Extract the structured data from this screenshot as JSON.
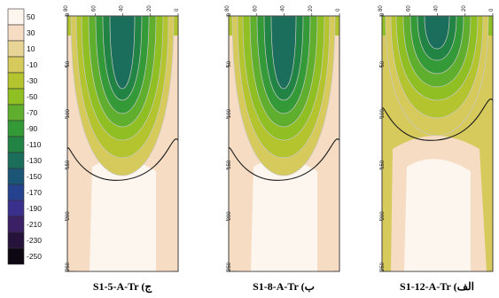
{
  "chart_data": {
    "type": "heatmap",
    "colorbar": {
      "labels": [
        "50",
        "30",
        "10",
        "-10",
        "-30",
        "-50",
        "-70",
        "-90",
        "-110",
        "-130",
        "-150",
        "-170",
        "-190",
        "-210",
        "-230",
        "-250"
      ],
      "colors": [
        "#fdf6ee",
        "#f5dcc3",
        "#e8d495",
        "#d7ca5c",
        "#b4c42e",
        "#8fbf22",
        "#5fae2d",
        "#349a38",
        "#218445",
        "#1c6e5c",
        "#1b5677",
        "#24428e",
        "#3a2f8c",
        "#3b2066",
        "#27123c",
        "#0c0712"
      ]
    },
    "panels": [
      {
        "caption": "S1-5-A-Tr (ج",
        "x_ticks": [
          "80",
          "60",
          "40",
          "20",
          "0"
        ],
        "y_ticks": [
          "0",
          "50",
          "100",
          "150",
          "200",
          "250"
        ]
      },
      {
        "caption": "S1-8-A-Tr (ب",
        "x_ticks": [
          "80",
          "60",
          "40",
          "20",
          "0"
        ],
        "y_ticks": [
          "0",
          "50",
          "100",
          "150",
          "200",
          "250"
        ]
      },
      {
        "caption": "S1-12-A-Tr (الف",
        "x_ticks": [
          "80",
          "60",
          "40",
          "20",
          "0"
        ],
        "y_ticks": [
          "0",
          "50",
          "100",
          "150",
          "200",
          "250"
        ]
      }
    ]
  }
}
